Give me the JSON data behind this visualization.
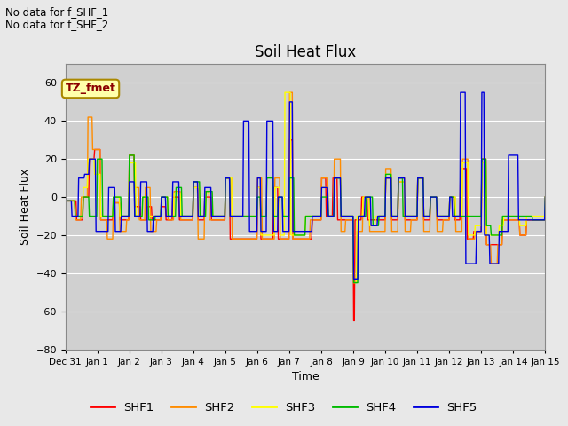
{
  "title": "Soil Heat Flux",
  "xlabel": "Time",
  "ylabel": "Soil Heat Flux",
  "ylim": [
    -80,
    70
  ],
  "xlim": [
    0,
    15
  ],
  "figsize": [
    6.4,
    4.8
  ],
  "dpi": 100,
  "background_color": "#e8e8e8",
  "plot_bg_color": "#d0d0d0",
  "text_no_data_1": "No data for f_SHF_1",
  "text_no_data_2": "No data for f_SHF_2",
  "tz_label": "TZ_fmet",
  "xtick_labels": [
    "Dec 31",
    "Jan 1",
    "Jan 2",
    "Jan 3",
    "Jan 4",
    "Jan 5",
    "Jan 6",
    "Jan 7",
    "Jan 8",
    "Jan 9",
    "Jan 10",
    "Jan 11",
    "Jan 12",
    "Jan 13",
    "Jan 14",
    "Jan 15"
  ],
  "ytick_values": [
    -80,
    -60,
    -40,
    -20,
    0,
    20,
    40,
    60
  ],
  "grid_color": "#ffffff",
  "colors": {
    "SHF1": "#ff0000",
    "SHF2": "#ff8c00",
    "SHF3": "#ffff00",
    "SHF4": "#00bb00",
    "SHF5": "#0000dd"
  },
  "legend_items": [
    "SHF1",
    "SHF2",
    "SHF3",
    "SHF4",
    "SHF5"
  ],
  "n_days": 15,
  "pts_per_day": 48
}
